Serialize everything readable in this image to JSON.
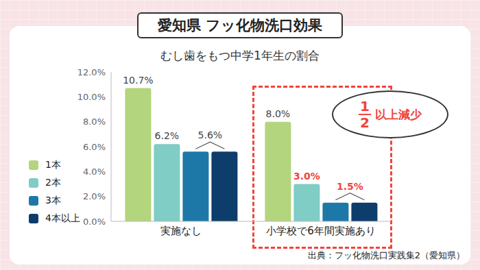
{
  "chart_data": {
    "type": "bar",
    "title": "愛知県 フッ化物洗口効果",
    "subtitle": "むし歯をもつ中学1年生の割合",
    "categories": [
      "実施なし",
      "小学校で6年間実施あり"
    ],
    "series": [
      {
        "name": "1本",
        "color": "#b3d57d",
        "values": [
          10.7,
          8.0
        ],
        "value_labels": [
          "10.7%",
          "8.0%"
        ]
      },
      {
        "name": "2本",
        "color": "#7fcdc5",
        "values": [
          6.2,
          3.0
        ],
        "value_labels": [
          "6.2%",
          "3.0%"
        ]
      },
      {
        "name": "3本",
        "color": "#1d78a8",
        "values": [
          5.6,
          1.5
        ],
        "value_labels": [
          "5.6%",
          "1.5%"
        ]
      },
      {
        "name": "4本以上",
        "color": "#0d3d6b",
        "values": [
          5.6,
          1.5
        ]
      }
    ],
    "ylim": [
      0,
      12
    ],
    "yticks": [
      {
        "value": 0,
        "label": "0.0%"
      },
      {
        "value": 2,
        "label": "2.0%"
      },
      {
        "value": 4,
        "label": "4.0%"
      },
      {
        "value": 6,
        "label": "6.0%"
      },
      {
        "value": 8,
        "label": "8.0%"
      },
      {
        "value": 10,
        "label": "10.0%"
      },
      {
        "value": 12,
        "label": "12.0%"
      }
    ],
    "grid": false,
    "legend": "left",
    "data_labels": true,
    "annotation": {
      "fraction": [
        "1",
        "2"
      ],
      "text": "以上減少"
    },
    "source": "出典：フッ化物洗口実践集2（愛知県）"
  }
}
